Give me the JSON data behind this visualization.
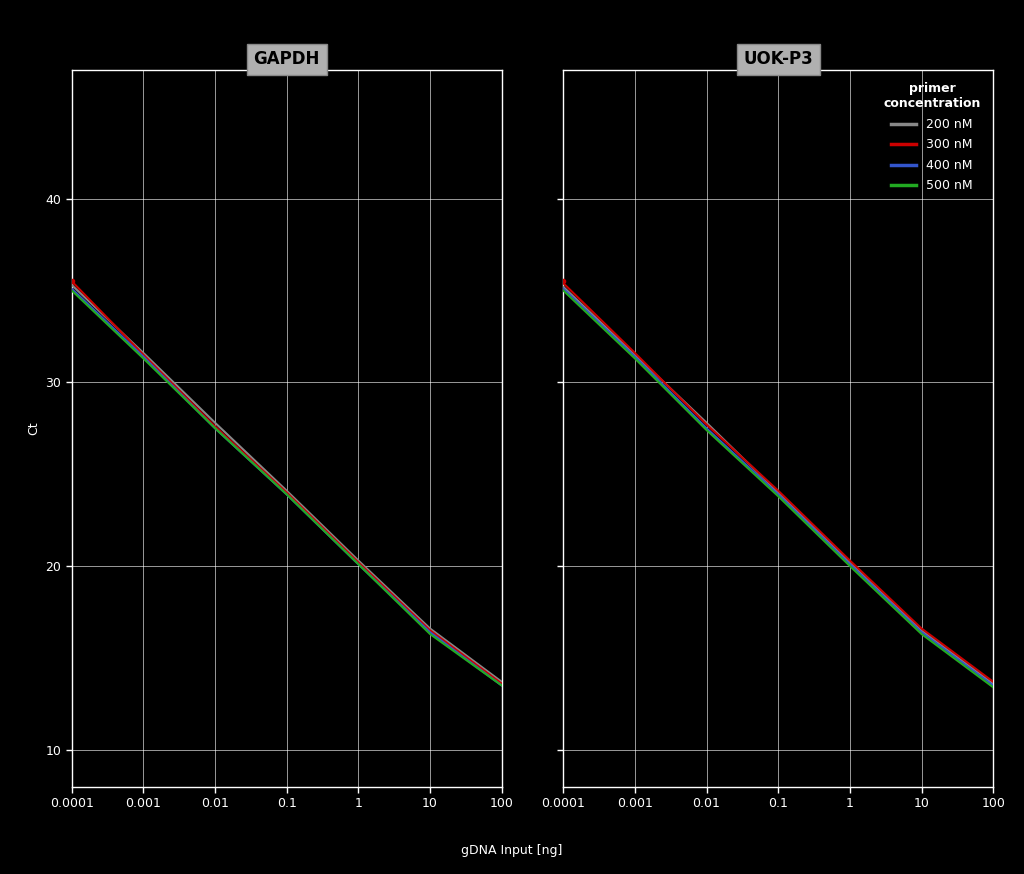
{
  "title_left": "GAPDH",
  "title_right": "UOK-P3",
  "xlabel": "gDNA Input [ng]",
  "ylabel": "Ct",
  "background_color": "#000000",
  "plot_bg_color": "#000000",
  "text_color": "#ffffff",
  "grid_color": "#ffffff",
  "title_bg_color": "#b0b0b0",
  "title_edge_color": "#888888",
  "xlim": [
    0.0001,
    100
  ],
  "ylim": [
    8,
    47
  ],
  "yticks": [
    10,
    20,
    30,
    40
  ],
  "xtick_vals": [
    0.0001,
    0.001,
    0.01,
    0.1,
    1,
    10,
    100
  ],
  "xtick_labels": [
    "0.0001",
    "0.001",
    "0.01",
    "0.1",
    "1",
    "10",
    "100"
  ],
  "legend_title": "primer\nconcentration",
  "legend_entries": [
    "200 nM",
    "300 nM",
    "400 nM",
    "500 nM"
  ],
  "line_colors": [
    "#888888",
    "#cc0000",
    "#3355cc",
    "#22aa22"
  ],
  "lines_left": [
    {
      "x": [
        0.0001,
        0.001,
        0.01,
        0.1,
        1,
        10,
        100
      ],
      "y": [
        35.3,
        31.6,
        27.8,
        24.1,
        20.3,
        16.6,
        13.7
      ]
    },
    {
      "x": [
        0.0001,
        0.001,
        0.01,
        0.1,
        1,
        10,
        100
      ],
      "y": [
        35.5,
        31.5,
        27.6,
        24.0,
        20.2,
        16.5,
        13.6
      ]
    },
    {
      "x": [
        0.0001,
        0.001,
        0.01,
        0.1,
        1,
        10,
        100
      ],
      "y": [
        35.1,
        31.4,
        27.5,
        23.9,
        20.1,
        16.4,
        13.5
      ]
    },
    {
      "x": [
        0.0001,
        0.001,
        0.01,
        0.1,
        1,
        10,
        100
      ],
      "y": [
        35.0,
        31.3,
        27.5,
        23.9,
        20.1,
        16.3,
        13.5
      ]
    }
  ],
  "lines_right": [
    {
      "x": [
        0.0001,
        0.001,
        0.01,
        0.1,
        1,
        10,
        100
      ],
      "y": [
        35.2,
        31.5,
        27.8,
        24.0,
        20.2,
        16.5,
        13.6
      ]
    },
    {
      "x": [
        0.0001,
        0.001,
        0.01,
        0.1,
        1,
        10,
        100
      ],
      "y": [
        35.4,
        31.6,
        27.7,
        24.1,
        20.3,
        16.6,
        13.7
      ]
    },
    {
      "x": [
        0.0001,
        0.001,
        0.01,
        0.1,
        1,
        10,
        100
      ],
      "y": [
        35.1,
        31.4,
        27.5,
        23.9,
        20.1,
        16.4,
        13.5
      ]
    },
    {
      "x": [
        0.0001,
        0.001,
        0.01,
        0.1,
        1,
        10,
        100
      ],
      "y": [
        35.0,
        31.3,
        27.4,
        23.8,
        20.0,
        16.3,
        13.4
      ]
    }
  ],
  "dot_x": 0.0001,
  "dot_y": 35.5,
  "dot_color": "#cc0000",
  "linewidth": 1.5,
  "fontsize_title": 12,
  "fontsize_ticks": 9,
  "fontsize_legend": 9,
  "fontsize_label": 9
}
